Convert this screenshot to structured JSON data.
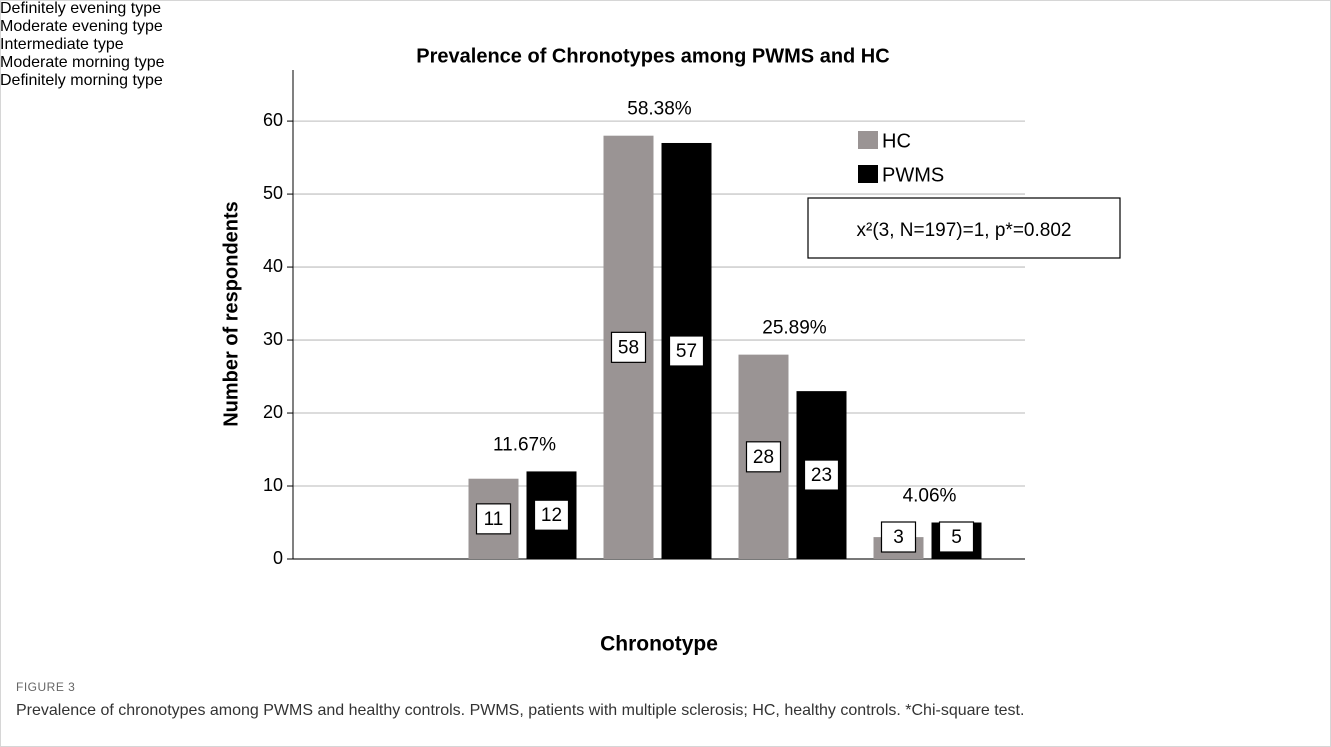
{
  "chart_data": {
    "type": "bar",
    "title": "Prevalence of Chronotypes among PWMS and HC",
    "x_label": "Chronotype",
    "y_label": "Number of respondents",
    "categories": [
      "Definitely evening type",
      "Moderate evening type",
      "Intermediate type",
      "Moderate morning type",
      "Definitely morning type"
    ],
    "series": [
      {
        "name": "HC",
        "color": "#9a9494",
        "values": [
          0,
          11,
          58,
          28,
          3
        ]
      },
      {
        "name": "PWMS",
        "color": "#000000",
        "values": [
          0,
          12,
          57,
          23,
          5
        ]
      }
    ],
    "group_labels": [
      null,
      "11.67%",
      "58.38%",
      "25.89%",
      "4.06%"
    ],
    "annotation": "x²(3, N=197)=1, p*=0.802",
    "ylim": [
      0,
      67
    ],
    "yticks": [
      0,
      10,
      20,
      30,
      40,
      50,
      60
    ],
    "grid": true,
    "legend": "upper right"
  },
  "caption": {
    "label": "FIGURE 3",
    "text": "Prevalence of chronotypes among PWMS and healthy controls. PWMS, patients with multiple sclerosis; HC, healthy controls. *Chi-square test."
  }
}
